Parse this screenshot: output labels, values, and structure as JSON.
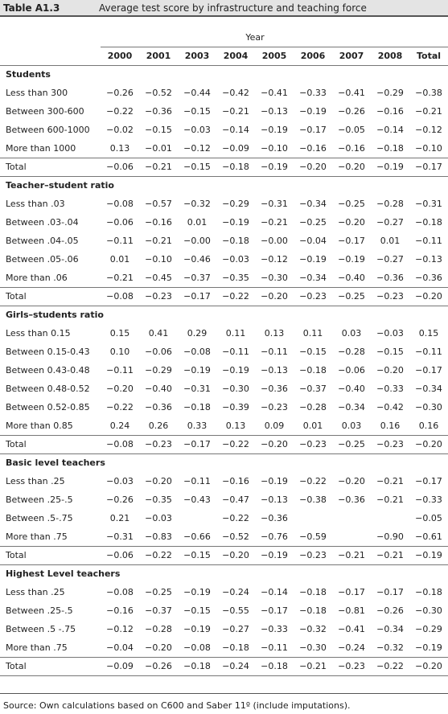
{
  "header": {
    "label": "Table A1.3",
    "title": "Average test score by infrastructure and teaching force"
  },
  "table": {
    "group_label": "Year",
    "columns": [
      "2000",
      "2001",
      "2003",
      "2004",
      "2005",
      "2006",
      "2007",
      "2008",
      "Total"
    ],
    "sections": [
      {
        "title": "Students",
        "rows": [
          {
            "label": "Less than 300",
            "cells": [
              "−0.26",
              "−0.52",
              "−0.44",
              "−0.42",
              "−0.41",
              "−0.33",
              "−0.41",
              "−0.29",
              "−0.38"
            ]
          },
          {
            "label": "Between 300-600",
            "cells": [
              "−0.22",
              "−0.36",
              "−0.15",
              "−0.21",
              "−0.13",
              "−0.19",
              "−0.26",
              "−0.16",
              "−0.21"
            ]
          },
          {
            "label": "Between 600-1000",
            "cells": [
              "−0.02",
              "−0.15",
              "−0.03",
              "−0.14",
              "−0.19",
              "−0.17",
              "−0.05",
              "−0.14",
              "−0.12"
            ]
          },
          {
            "label": "More than 1000",
            "cells": [
              "0.13",
              "−0.01",
              "−0.12",
              "−0.09",
              "−0.10",
              "−0.16",
              "−0.16",
              "−0.18",
              "−0.10"
            ]
          },
          {
            "label": "Total",
            "cells": [
              "−0.06",
              "−0.21",
              "−0.15",
              "−0.18",
              "−0.19",
              "−0.20",
              "−0.20",
              "−0.19",
              "−0.17"
            ]
          }
        ]
      },
      {
        "title": "Teacher–student ratio",
        "rows": [
          {
            "label": "Less than .03",
            "cells": [
              "−0.08",
              "−0.57",
              "−0.32",
              "−0.29",
              "−0.31",
              "−0.34",
              "−0.25",
              "−0.28",
              "−0.31"
            ]
          },
          {
            "label": "Between .03-.04",
            "cells": [
              "−0.06",
              "−0.16",
              "0.01",
              "−0.19",
              "−0.21",
              "−0.25",
              "−0.20",
              "−0.27",
              "−0.18"
            ]
          },
          {
            "label": "Between .04-.05",
            "cells": [
              "−0.11",
              "−0.21",
              "−0.00",
              "−0.18",
              "−0.00",
              "−0.04",
              "−0.17",
              "0.01",
              "−0.11"
            ]
          },
          {
            "label": "Between .05-.06",
            "cells": [
              "0.01",
              "−0.10",
              "−0.46",
              "−0.03",
              "−0.12",
              "−0.19",
              "−0.19",
              "−0.27",
              "−0.13"
            ]
          },
          {
            "label": "More than .06",
            "cells": [
              "−0.21",
              "−0.45",
              "−0.37",
              "−0.35",
              "−0.30",
              "−0.34",
              "−0.40",
              "−0.36",
              "−0.36"
            ]
          },
          {
            "label": "Total",
            "cells": [
              "−0.08",
              "−0.23",
              "−0.17",
              "−0.22",
              "−0.20",
              "−0.23",
              "−0.25",
              "−0.23",
              "−0.20"
            ]
          }
        ]
      },
      {
        "title": "Girls–students ratio",
        "rows": [
          {
            "label": "Less than 0.15",
            "cells": [
              "0.15",
              "0.41",
              "0.29",
              "0.11",
              "0.13",
              "0.11",
              "0.03",
              "−0.03",
              "0.15"
            ]
          },
          {
            "label": "Between 0.15-0.43",
            "cells": [
              "0.10",
              "−0.06",
              "−0.08",
              "−0.11",
              "−0.11",
              "−0.15",
              "−0.28",
              "−0.15",
              "−0.11"
            ]
          },
          {
            "label": "Between 0.43-0.48",
            "cells": [
              "−0.11",
              "−0.29",
              "−0.19",
              "−0.19",
              "−0.13",
              "−0.18",
              "−0.06",
              "−0.20",
              "−0.17"
            ]
          },
          {
            "label": "Between 0.48-0.52",
            "cells": [
              "−0.20",
              "−0.40",
              "−0.31",
              "−0.30",
              "−0.36",
              "−0.37",
              "−0.40",
              "−0.33",
              "−0.34"
            ]
          },
          {
            "label": "Between 0.52-0.85",
            "cells": [
              "−0.22",
              "−0.36",
              "−0.18",
              "−0.39",
              "−0.23",
              "−0.28",
              "−0.34",
              "−0.42",
              "−0.30"
            ]
          },
          {
            "label": "More than 0.85",
            "cells": [
              "0.24",
              "0.26",
              "0.33",
              "0.13",
              "0.09",
              "0.01",
              "0.03",
              "0.16",
              "0.16"
            ]
          },
          {
            "label": "Total",
            "cells": [
              "−0.08",
              "−0.23",
              "−0.17",
              "−0.22",
              "−0.20",
              "−0.23",
              "−0.25",
              "−0.23",
              "−0.20"
            ]
          }
        ]
      },
      {
        "title": "Basic level teachers",
        "rows": [
          {
            "label": "Less than .25",
            "cells": [
              "−0.03",
              "−0.20",
              "−0.11",
              "−0.16",
              "−0.19",
              "−0.22",
              "−0.20",
              "−0.21",
              "−0.17"
            ]
          },
          {
            "label": "Between .25-.5",
            "cells": [
              "−0.26",
              "−0.35",
              "−0.43",
              "−0.47",
              "−0.13",
              "−0.38",
              "−0.36",
              "−0.21",
              "−0.33"
            ]
          },
          {
            "label": "Between .5-.75",
            "cells": [
              "0.21",
              "−0.03",
              null,
              "−0.22",
              "−0.36",
              null,
              null,
              null,
              "−0.05"
            ]
          },
          {
            "label": "More than .75",
            "cells": [
              "−0.31",
              "−0.83",
              "−0.66",
              "−0.52",
              "−0.76",
              "−0.59",
              null,
              "−0.90",
              "−0.61"
            ]
          },
          {
            "label": "Total",
            "cells": [
              "−0.06",
              "−0.22",
              "−0.15",
              "−0.20",
              "−0.19",
              "−0.23",
              "−0.21",
              "−0.21",
              "−0.19"
            ]
          }
        ]
      },
      {
        "title": "Highest Level teachers",
        "rows": [
          {
            "label": "Less than .25",
            "cells": [
              "−0.08",
              "−0.25",
              "−0.19",
              "−0.24",
              "−0.14",
              "−0.18",
              "−0.17",
              "−0.17",
              "−0.18"
            ]
          },
          {
            "label": "Between .25-.5",
            "cells": [
              "−0.16",
              "−0.37",
              "−0.15",
              "−0.55",
              "−0.17",
              "−0.18",
              "−0.81",
              "−0.26",
              "−0.30"
            ]
          },
          {
            "label": "Between .5 -.75",
            "cells": [
              "−0.12",
              "−0.28",
              "−0.19",
              "−0.27",
              "−0.33",
              "−0.32",
              "−0.41",
              "−0.34",
              "−0.29"
            ]
          },
          {
            "label": "More than .75",
            "cells": [
              "−0.04",
              "−0.20",
              "−0.08",
              "−0.18",
              "−0.11",
              "−0.30",
              "−0.24",
              "−0.32",
              "−0.19"
            ]
          },
          {
            "label": "Total",
            "cells": [
              "−0.09",
              "−0.26",
              "−0.18",
              "−0.24",
              "−0.18",
              "−0.21",
              "−0.23",
              "−0.22",
              "−0.20"
            ]
          }
        ]
      }
    ]
  },
  "source": "Source: Own calculations based on C600 and Saber 11º (include imputations)."
}
